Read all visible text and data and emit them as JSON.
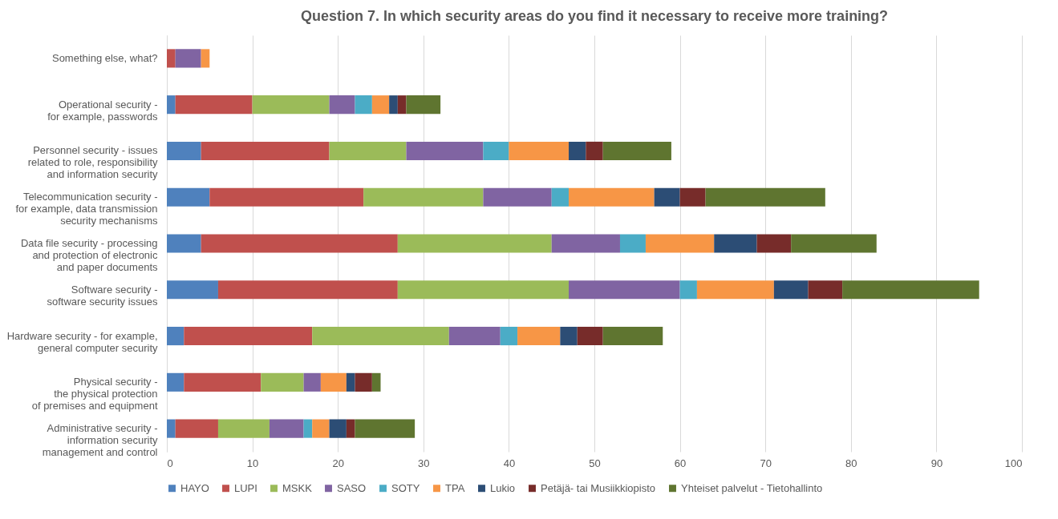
{
  "chart_data": {
    "type": "bar",
    "orientation": "horizontal",
    "stacked": true,
    "title": "Question 7. In which security areas do you find it necessary to receive more training?",
    "categories": [
      "Something else, what?",
      "Operational security -\nfor example, passwords",
      "Personnel security - issues\nrelated to role, responsibility\nand information security",
      "Telecommunication security -\nfor example, data transmission\nsecurity mechanisms",
      "Data file security - processing\nand protection of electronic\nand paper documents",
      "Software security -\nsoftware security issues",
      "Hardware security - for example,\ngeneral computer security",
      "Physical security -\nthe physical protection\nof premises and equipment",
      "Administrative security -\ninformation security\nmanagement and control"
    ],
    "series": [
      {
        "name": "HAYO",
        "color": "#4f81bd",
        "values": [
          0,
          1,
          4,
          5,
          4,
          6,
          2,
          2,
          1
        ]
      },
      {
        "name": "LUPI",
        "color": "#c0504d",
        "values": [
          1,
          9,
          15,
          18,
          23,
          21,
          15,
          9,
          5
        ]
      },
      {
        "name": "MSKK",
        "color": "#9bbb59",
        "values": [
          0,
          9,
          9,
          14,
          18,
          20,
          16,
          5,
          6
        ]
      },
      {
        "name": "SASO",
        "color": "#8064a2",
        "values": [
          3,
          3,
          9,
          8,
          8,
          13,
          6,
          2,
          4
        ]
      },
      {
        "name": "SOTY",
        "color": "#4bacc6",
        "values": [
          0,
          2,
          3,
          2,
          3,
          2,
          2,
          0,
          1
        ]
      },
      {
        "name": "TPA",
        "color": "#f79646",
        "values": [
          1,
          2,
          7,
          10,
          8,
          9,
          5,
          3,
          2
        ]
      },
      {
        "name": "Lukio",
        "color": "#2c4d75",
        "values": [
          0,
          1,
          2,
          3,
          5,
          4,
          2,
          1,
          2
        ]
      },
      {
        "name": "Petäjä- tai Musiikkiopisto",
        "color": "#772c2a",
        "values": [
          0,
          1,
          2,
          3,
          4,
          4,
          3,
          2,
          1
        ]
      },
      {
        "name": "Yhteiset palvelut - Tietohallinto",
        "color": "#5f7530",
        "values": [
          0,
          4,
          8,
          14,
          10,
          16,
          7,
          1,
          7
        ]
      }
    ],
    "xlim": [
      0,
      100
    ],
    "xticks": [
      0,
      10,
      20,
      30,
      40,
      50,
      60,
      70,
      80,
      90,
      100
    ],
    "grid": "x",
    "legend": "bottom"
  }
}
